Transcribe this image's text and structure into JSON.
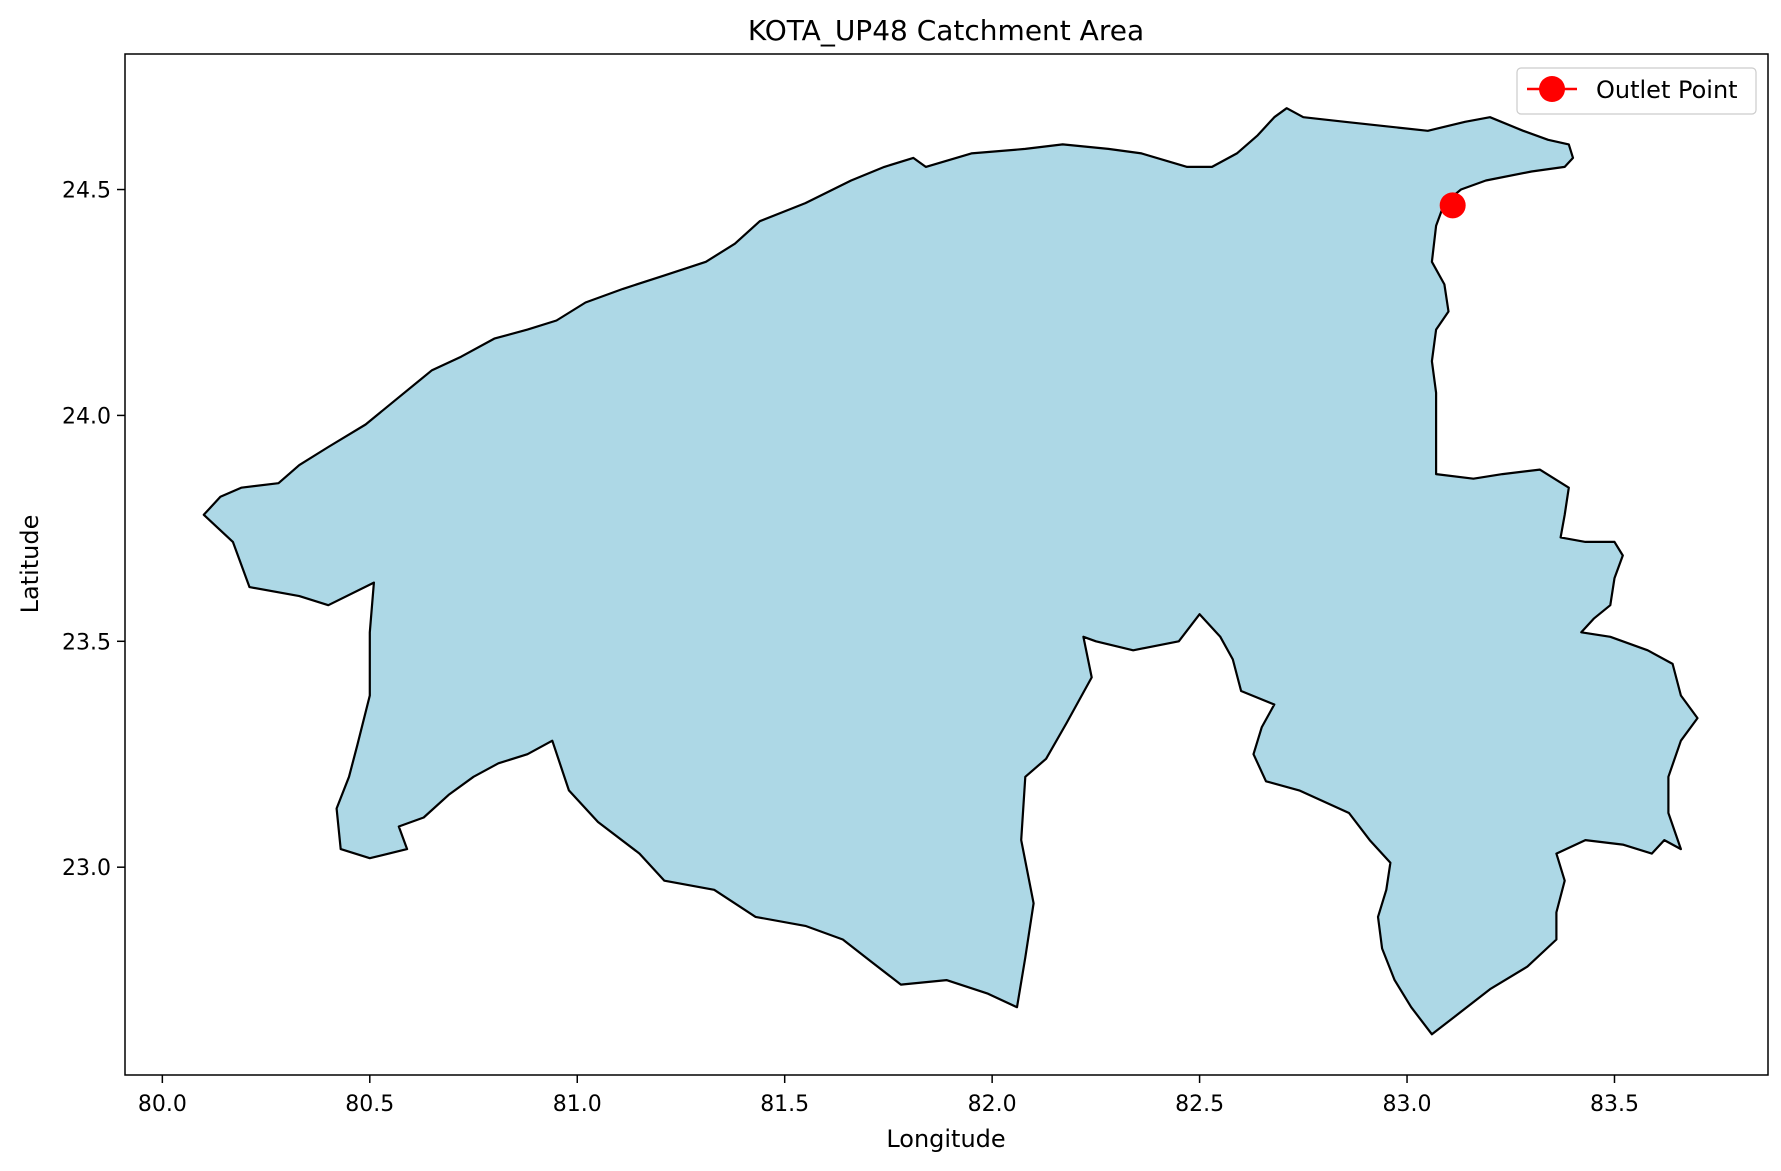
{
  "chart_data": {
    "type": "map",
    "title": "KOTA_UP48 Catchment Area",
    "xlabel": "Longitude",
    "ylabel": "Latitude",
    "xlim": [
      79.91,
      83.87
    ],
    "ylim": [
      22.54,
      24.8
    ],
    "xticks": [
      80.0,
      80.5,
      81.0,
      81.5,
      82.0,
      82.5,
      83.0,
      83.5
    ],
    "xtick_labels": [
      "80.0",
      "80.5",
      "81.0",
      "81.5",
      "82.0",
      "82.5",
      "83.0",
      "83.5"
    ],
    "yticks": [
      23.0,
      23.5,
      24.0,
      24.5
    ],
    "ytick_labels": [
      "23.0",
      "23.5",
      "24.0",
      "24.5"
    ],
    "grid": false,
    "legend_position": "top-right",
    "catchment": {
      "fill": "#add8e6",
      "edge": "#000000",
      "boundary": [
        [
          80.1,
          23.78
        ],
        [
          80.14,
          23.82
        ],
        [
          80.19,
          23.84
        ],
        [
          80.28,
          23.85
        ],
        [
          80.33,
          23.89
        ],
        [
          80.4,
          23.93
        ],
        [
          80.49,
          23.98
        ],
        [
          80.57,
          24.04
        ],
        [
          80.65,
          24.1
        ],
        [
          80.72,
          24.13
        ],
        [
          80.8,
          24.17
        ],
        [
          80.88,
          24.19
        ],
        [
          80.95,
          24.21
        ],
        [
          81.02,
          24.25
        ],
        [
          81.11,
          24.28
        ],
        [
          81.21,
          24.31
        ],
        [
          81.31,
          24.34
        ],
        [
          81.38,
          24.38
        ],
        [
          81.44,
          24.43
        ],
        [
          81.55,
          24.47
        ],
        [
          81.66,
          24.52
        ],
        [
          81.74,
          24.55
        ],
        [
          81.81,
          24.57
        ],
        [
          81.84,
          24.55
        ],
        [
          81.95,
          24.58
        ],
        [
          82.08,
          24.59
        ],
        [
          82.17,
          24.6
        ],
        [
          82.28,
          24.59
        ],
        [
          82.36,
          24.58
        ],
        [
          82.47,
          24.55
        ],
        [
          82.53,
          24.55
        ],
        [
          82.59,
          24.58
        ],
        [
          82.64,
          24.62
        ],
        [
          82.68,
          24.66
        ],
        [
          82.71,
          24.68
        ],
        [
          82.75,
          24.66
        ],
        [
          82.85,
          24.65
        ],
        [
          82.95,
          24.64
        ],
        [
          83.05,
          24.63
        ],
        [
          83.14,
          24.65
        ],
        [
          83.2,
          24.66
        ],
        [
          83.28,
          24.63
        ],
        [
          83.34,
          24.61
        ],
        [
          83.39,
          24.6
        ],
        [
          83.4,
          24.57
        ],
        [
          83.38,
          24.55
        ],
        [
          83.3,
          24.54
        ],
        [
          83.19,
          24.52
        ],
        [
          83.13,
          24.5
        ],
        [
          83.09,
          24.47
        ],
        [
          83.07,
          24.42
        ],
        [
          83.06,
          24.34
        ],
        [
          83.09,
          24.29
        ],
        [
          83.1,
          24.23
        ],
        [
          83.07,
          24.19
        ],
        [
          83.06,
          24.12
        ],
        [
          83.07,
          24.05
        ],
        [
          83.07,
          23.98
        ],
        [
          83.07,
          23.9
        ],
        [
          83.07,
          23.87
        ],
        [
          83.16,
          23.86
        ],
        [
          83.23,
          23.87
        ],
        [
          83.32,
          23.88
        ],
        [
          83.39,
          23.84
        ],
        [
          83.38,
          23.78
        ],
        [
          83.37,
          23.73
        ],
        [
          83.43,
          23.72
        ],
        [
          83.5,
          23.72
        ],
        [
          83.52,
          23.69
        ],
        [
          83.5,
          23.64
        ],
        [
          83.49,
          23.58
        ],
        [
          83.45,
          23.55
        ],
        [
          83.42,
          23.52
        ],
        [
          83.49,
          23.51
        ],
        [
          83.58,
          23.48
        ],
        [
          83.64,
          23.45
        ],
        [
          83.66,
          23.38
        ],
        [
          83.7,
          23.33
        ],
        [
          83.66,
          23.28
        ],
        [
          83.63,
          23.2
        ],
        [
          83.63,
          23.12
        ],
        [
          83.66,
          23.04
        ],
        [
          83.62,
          23.06
        ],
        [
          83.59,
          23.03
        ],
        [
          83.52,
          23.05
        ],
        [
          83.43,
          23.06
        ],
        [
          83.36,
          23.03
        ],
        [
          83.38,
          22.97
        ],
        [
          83.36,
          22.9
        ],
        [
          83.36,
          22.84
        ],
        [
          83.29,
          22.78
        ],
        [
          83.2,
          22.73
        ],
        [
          83.13,
          22.68
        ],
        [
          83.06,
          22.63
        ],
        [
          83.01,
          22.69
        ],
        [
          82.97,
          22.75
        ],
        [
          82.94,
          22.82
        ],
        [
          82.93,
          22.89
        ],
        [
          82.95,
          22.95
        ],
        [
          82.96,
          23.01
        ],
        [
          82.91,
          23.06
        ],
        [
          82.86,
          23.12
        ],
        [
          82.74,
          23.17
        ],
        [
          82.66,
          23.19
        ],
        [
          82.63,
          23.25
        ],
        [
          82.65,
          23.31
        ],
        [
          82.68,
          23.36
        ],
        [
          82.6,
          23.39
        ],
        [
          82.58,
          23.46
        ],
        [
          82.55,
          23.51
        ],
        [
          82.5,
          23.56
        ],
        [
          82.45,
          23.5
        ],
        [
          82.34,
          23.48
        ],
        [
          82.25,
          23.5
        ],
        [
          82.22,
          23.51
        ],
        [
          82.24,
          23.42
        ],
        [
          82.18,
          23.32
        ],
        [
          82.13,
          23.24
        ],
        [
          82.08,
          23.2
        ],
        [
          82.07,
          23.06
        ],
        [
          82.1,
          22.92
        ],
        [
          82.08,
          22.8
        ],
        [
          82.06,
          22.69
        ],
        [
          81.99,
          22.72
        ],
        [
          81.89,
          22.75
        ],
        [
          81.78,
          22.74
        ],
        [
          81.71,
          22.79
        ],
        [
          81.64,
          22.84
        ],
        [
          81.55,
          22.87
        ],
        [
          81.43,
          22.89
        ],
        [
          81.33,
          22.95
        ],
        [
          81.21,
          22.97
        ],
        [
          81.15,
          23.03
        ],
        [
          81.05,
          23.1
        ],
        [
          80.98,
          23.17
        ],
        [
          80.94,
          23.28
        ],
        [
          80.88,
          23.25
        ],
        [
          80.81,
          23.23
        ],
        [
          80.75,
          23.2
        ],
        [
          80.69,
          23.16
        ],
        [
          80.63,
          23.11
        ],
        [
          80.57,
          23.09
        ],
        [
          80.59,
          23.04
        ],
        [
          80.5,
          23.02
        ],
        [
          80.43,
          23.04
        ],
        [
          80.42,
          23.13
        ],
        [
          80.45,
          23.2
        ],
        [
          80.47,
          23.27
        ],
        [
          80.5,
          23.38
        ],
        [
          80.5,
          23.52
        ],
        [
          80.51,
          23.63
        ],
        [
          80.4,
          23.58
        ],
        [
          80.33,
          23.6
        ],
        [
          80.21,
          23.62
        ],
        [
          80.17,
          23.72
        ],
        [
          80.1,
          23.78
        ]
      ]
    },
    "outlet_point": {
      "lon": 83.11,
      "lat": 24.465,
      "color": "#ff0000"
    },
    "legend": [
      {
        "label": "Outlet Point",
        "color": "#ff0000",
        "marker": "circle-with-line"
      }
    ]
  }
}
